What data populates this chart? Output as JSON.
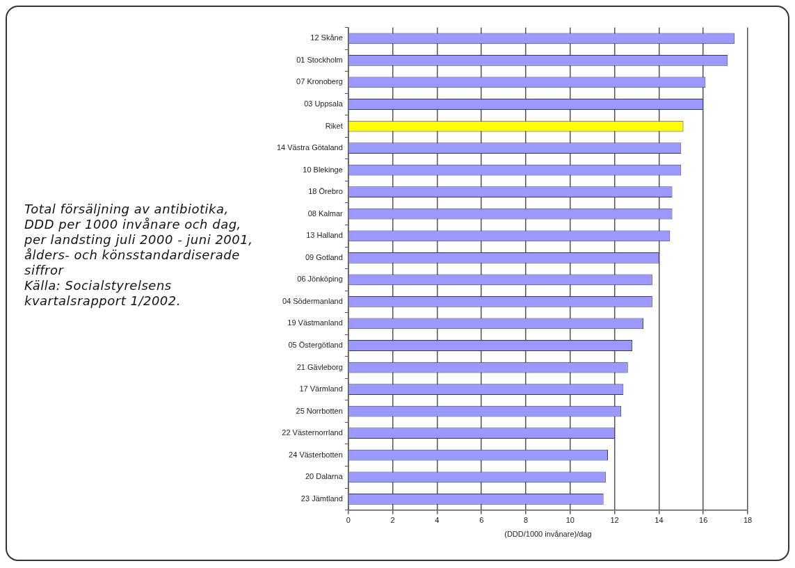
{
  "chart_data": {
    "type": "bar",
    "orientation": "horizontal",
    "title": "Total försäljning av antibiotika, DDD per 1000 invånare och dag, per landsting juli 2000 - juni 2001, ålders- och könsstandardiserade siffror",
    "annotations": [
      "Källa: Socialstyrelsens kvartalsrapport 1/2002."
    ],
    "xlabel": "(DDD/1000 invånare)/dag",
    "categories": [
      "12 Skåne",
      "01 Stockholm",
      "07 Kronoberg",
      "03 Uppsala",
      "Riket",
      "14 Västra Götaland",
      "10 Blekinge",
      "18 Örebro",
      "08 Kalmar",
      "13 Halland",
      "09 Gotland",
      "06 Jönköping",
      "04 Södermanland",
      "19 Västmanland",
      "05 Östergötland",
      "21 Gävleborg",
      "17 Värmland",
      "25 Norrbotten",
      "22 Västernorrland",
      "24 Västerbotten",
      "20 Dalarna",
      "23 Jämtland"
    ],
    "values": [
      17.4,
      17.1,
      16.1,
      16.0,
      15.1,
      15.0,
      15.0,
      14.6,
      14.6,
      14.5,
      14.0,
      13.7,
      13.7,
      13.3,
      12.8,
      12.6,
      12.4,
      12.3,
      12.0,
      11.7,
      11.6,
      11.5
    ],
    "colors": [
      "#9999ff",
      "#9999ff",
      "#9999ff",
      "#9999ff",
      "#ffff00",
      "#9999ff",
      "#9999ff",
      "#9999ff",
      "#9999ff",
      "#9999ff",
      "#9999ff",
      "#9999ff",
      "#9999ff",
      "#9999ff",
      "#9999ff",
      "#9999ff",
      "#9999ff",
      "#9999ff",
      "#9999ff",
      "#9999ff",
      "#9999ff",
      "#9999ff"
    ],
    "xlim": [
      0,
      18
    ],
    "xticks": [
      0,
      2,
      4,
      6,
      8,
      10,
      12,
      14,
      16,
      18
    ],
    "grid": "x",
    "legend": false
  }
}
